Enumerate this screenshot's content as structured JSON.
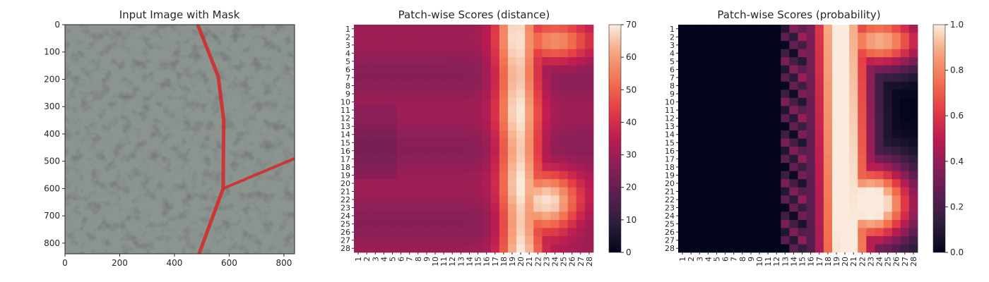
{
  "chart_data": [
    {
      "type": "image",
      "title": "Input Image with Mask",
      "x_ticks": [
        "0",
        "200",
        "400",
        "600",
        "800"
      ],
      "y_ticks": [
        "0",
        "100",
        "200",
        "300",
        "400",
        "500",
        "600",
        "700",
        "800"
      ],
      "xlim": [
        0,
        839
      ],
      "ylim": [
        839,
        0
      ],
      "mask_color": "#d62728",
      "mask_path": [
        [
          485,
          0
        ],
        [
          560,
          190
        ],
        [
          580,
          350
        ],
        [
          578,
          600
        ],
        [
          490,
          839
        ]
      ],
      "mask_branch": [
        [
          578,
          600
        ],
        [
          839,
          490
        ]
      ],
      "background_color": "#8b938e"
    },
    {
      "type": "heatmap",
      "title": "Patch-wise Scores (distance)",
      "row_labels": [
        "1",
        "2",
        "3",
        "4",
        "5",
        "6",
        "7",
        "8",
        "9",
        "10",
        "11",
        "12",
        "13",
        "14",
        "15",
        "16",
        "17",
        "18",
        "19",
        "20",
        "21",
        "22",
        "23",
        "24",
        "25",
        "26",
        "27",
        "28"
      ],
      "col_labels": [
        "1",
        "2",
        "3",
        "4",
        "5",
        "6",
        "7",
        "8",
        "9",
        "10",
        "11",
        "12",
        "13",
        "14",
        "15",
        "16",
        "17",
        "18",
        "19",
        "20",
        "21",
        "22",
        "23",
        "24",
        "25",
        "26",
        "27",
        "28"
      ],
      "colorbar_ticks": [
        "0",
        "10",
        "20",
        "30",
        "40",
        "50",
        "60",
        "70"
      ],
      "vmin": 0,
      "vmax": 70,
      "colormap": "rocket",
      "approx_pattern": "base ~28, bright band ~55-70 along columns 17-22, bulge toward columns 21-26 in rows 18-26"
    },
    {
      "type": "heatmap",
      "title": "Patch-wise Scores (probability)",
      "row_labels": [
        "1",
        "2",
        "3",
        "4",
        "5",
        "6",
        "7",
        "8",
        "9",
        "10",
        "11",
        "12",
        "13",
        "14",
        "15",
        "16",
        "17",
        "18",
        "19",
        "20",
        "21",
        "22",
        "23",
        "24",
        "25",
        "26",
        "27",
        "28"
      ],
      "col_labels": [
        "1",
        "2",
        "3",
        "4",
        "5",
        "6",
        "7",
        "8",
        "9",
        "10",
        "11",
        "12",
        "13",
        "14",
        "15",
        "16",
        "17",
        "18",
        "19",
        "20",
        "21",
        "22",
        "23",
        "24",
        "25",
        "26",
        "27",
        "28"
      ],
      "colorbar_ticks": [
        "0.0",
        "0.2",
        "0.4",
        "0.6",
        "0.8",
        "1.0"
      ],
      "vmin": 0.0,
      "vmax": 1.0,
      "colormap": "rocket",
      "approx_pattern": "near 0 on columns 1-13, ~1.0 along columns 16-23, bulge toward columns 21-28 in rows 18-26"
    }
  ]
}
